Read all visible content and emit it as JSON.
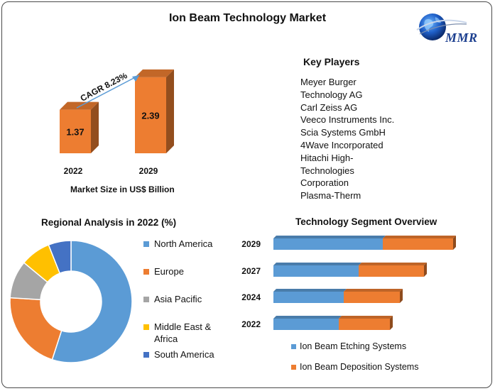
{
  "title": "Ion Beam Technology Market",
  "logo": {
    "text": "MMR",
    "icon": "globe-icon"
  },
  "market_size": {
    "caption": "Market Size in US$ Billion",
    "cagr_label": "CAGR 8.23%"
  },
  "key_players": {
    "title": "Key Players",
    "lines": [
      "Meyer Burger",
      "Technology AG",
      "Carl Zeiss AG",
      "Veeco Instruments Inc.",
      "Scia Systems GmbH",
      "4Wave Incorporated",
      "Hitachi High-",
      "Technologies",
      "Corporation",
      "Plasma-Therm"
    ]
  },
  "regional": {
    "title": "Regional Analysis in 2022 (%)"
  },
  "technology": {
    "title": "Technology Segment Overview"
  },
  "colors": {
    "orange": "#ed7d31",
    "blue": "#5b9bd5",
    "gray": "#a5a5a5",
    "yellow": "#ffc000",
    "dark_blue": "#4472c4"
  },
  "chart_data": [
    {
      "type": "bar",
      "categories": [
        "2022",
        "2029"
      ],
      "values": [
        1.37,
        2.39
      ],
      "title": "",
      "xlabel": "Market Size in US$ Billion",
      "ylabel": "",
      "annotation": "CAGR 8.23%"
    },
    {
      "type": "pie",
      "title": "Regional Analysis in 2022 (%)",
      "labels": [
        "North America",
        "Europe",
        "Asia Pacific",
        "Middle East & Africa",
        "South America"
      ],
      "legend_lines": [
        [
          "North America"
        ],
        [
          "Europe"
        ],
        [
          "Asia Pacific"
        ],
        [
          "Middle East &",
          "Africa"
        ],
        [
          "South America"
        ]
      ],
      "values": [
        55,
        21,
        10,
        8,
        6
      ],
      "colors": [
        "#5b9bd5",
        "#ed7d31",
        "#a5a5a5",
        "#ffc000",
        "#4472c4"
      ],
      "legend": "right"
    },
    {
      "type": "bar",
      "orientation": "horizontal",
      "stacked": true,
      "title": "Technology Segment Overview",
      "categories": [
        "2029",
        "2027",
        "2024",
        "2022"
      ],
      "series": [
        {
          "name": "Ion Beam Etching Systems",
          "values": [
            154,
            120,
            99,
            92
          ]
        },
        {
          "name": "Ion Beam Deposition Systems",
          "values": [
            99,
            92,
            79,
            72
          ]
        }
      ],
      "colors": [
        "#5b9bd5",
        "#ed7d31"
      ],
      "legend": "bottom"
    }
  ]
}
